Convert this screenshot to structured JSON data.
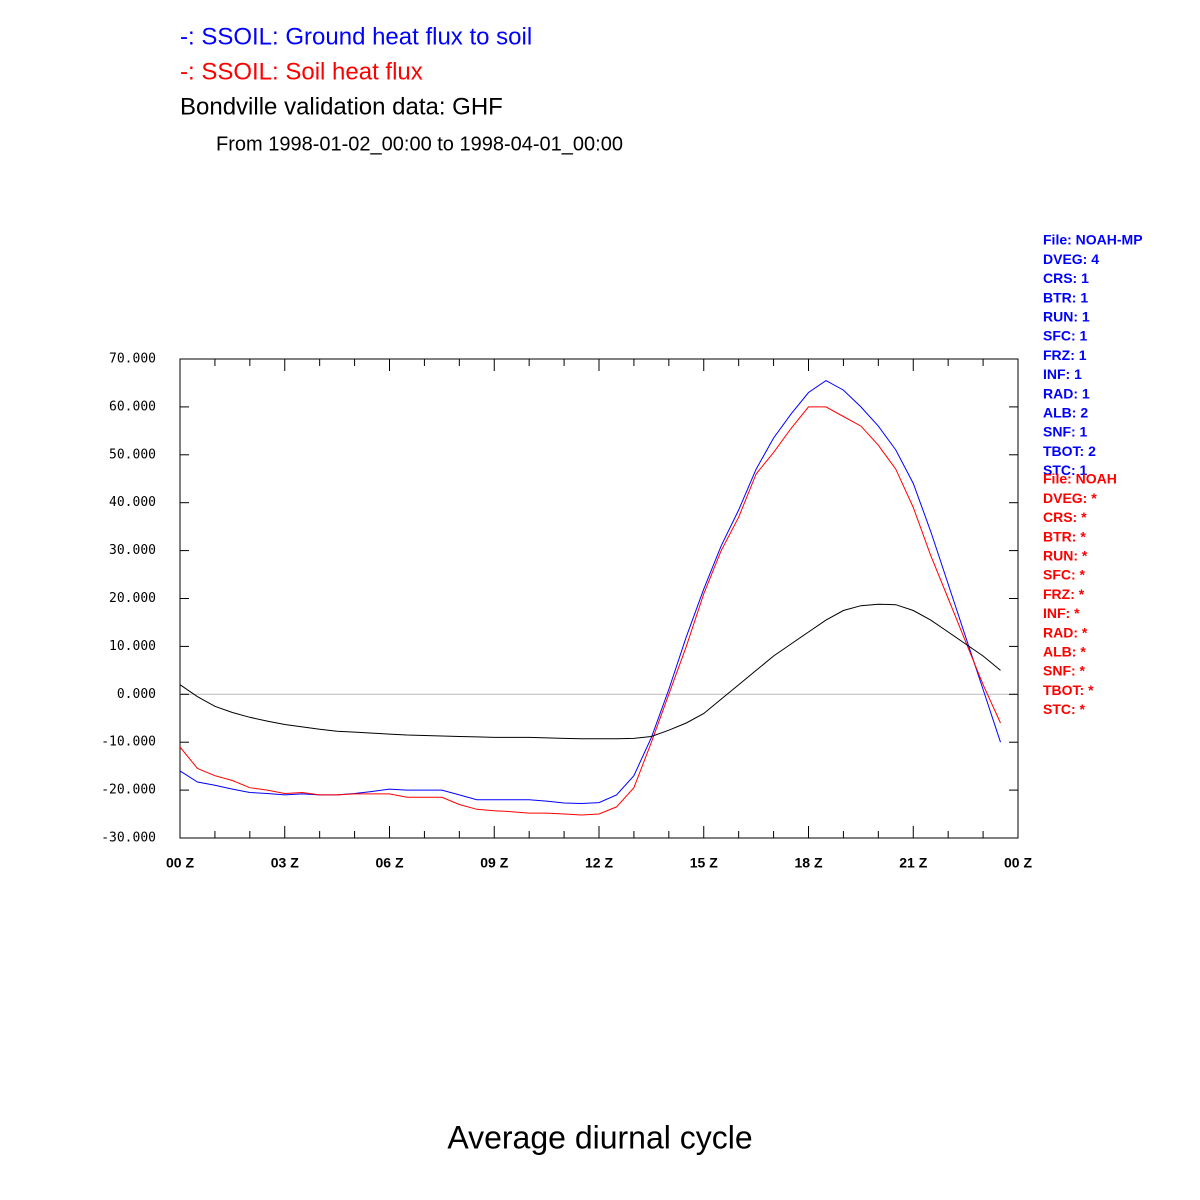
{
  "chart_data": {
    "type": "line",
    "title": "Average diurnal cycle",
    "subtitle": "From 1998-01-02_00:00 to 1998-04-01_00:00",
    "x": [
      0,
      0.5,
      1,
      1.5,
      2,
      2.5,
      3,
      3.5,
      4,
      4.5,
      5,
      5.5,
      6,
      6.5,
      7,
      7.5,
      8,
      8.5,
      9,
      9.5,
      10,
      10.5,
      11,
      11.5,
      12,
      12.5,
      13,
      13.5,
      14,
      14.5,
      15,
      15.5,
      16,
      16.5,
      17,
      17.5,
      18,
      18.5,
      19,
      19.5,
      20,
      20.5,
      21,
      21.5,
      22,
      22.5,
      23,
      23.5
    ],
    "series": [
      {
        "name": "-: SSOIL: Ground heat flux to soil",
        "color": "#0000ff",
        "values": [
          -16,
          -18.3,
          -19,
          -19.8,
          -20.5,
          -20.7,
          -21,
          -20.8,
          -21,
          -21,
          -20.7,
          -20.3,
          -19.8,
          -20,
          -20,
          -20,
          -21,
          -22,
          -22,
          -22,
          -22,
          -22.3,
          -22.7,
          -22.8,
          -22.6,
          -21,
          -17,
          -9,
          1,
          12,
          22,
          31,
          38.5,
          47,
          53.5,
          58.5,
          63,
          65.5,
          63.5,
          60,
          56,
          51,
          44,
          34,
          23,
          12,
          1,
          -10
        ]
      },
      {
        "name": "-: SSOIL: Soil heat flux",
        "color": "#ff0000",
        "values": [
          -11,
          -15.5,
          -17,
          -18,
          -19.5,
          -20,
          -20.7,
          -20.5,
          -21,
          -21,
          -20.8,
          -20.8,
          -20.8,
          -21.5,
          -21.5,
          -21.5,
          -23,
          -24,
          -24.3,
          -24.5,
          -24.8,
          -24.8,
          -25,
          -25.2,
          -25,
          -23.5,
          -19.5,
          -10,
          0,
          10,
          21,
          30,
          37,
          46,
          50.5,
          55.5,
          60,
          60,
          58,
          56,
          52,
          47,
          39,
          29,
          20,
          11,
          2,
          -6
        ]
      },
      {
        "name": "Bondville validation data: GHF",
        "color": "#000000",
        "values": [
          2,
          -0.5,
          -2.5,
          -3.8,
          -4.8,
          -5.6,
          -6.3,
          -6.8,
          -7.3,
          -7.7,
          -7.9,
          -8.1,
          -8.3,
          -8.5,
          -8.6,
          -8.7,
          -8.8,
          -8.9,
          -9,
          -9,
          -9,
          -9.1,
          -9.2,
          -9.3,
          -9.3,
          -9.3,
          -9.2,
          -8.8,
          -7.5,
          -6,
          -4,
          -1,
          2,
          5,
          8,
          10.5,
          13,
          15.5,
          17.5,
          18.5,
          18.8,
          18.7,
          17.5,
          15.5,
          13,
          10.5,
          8,
          5
        ]
      }
    ],
    "xlim": [
      0,
      24
    ],
    "xticks": [
      {
        "value": 0,
        "label": "00 Z"
      },
      {
        "value": 3,
        "label": "03 Z"
      },
      {
        "value": 6,
        "label": "06 Z"
      },
      {
        "value": 9,
        "label": "09 Z"
      },
      {
        "value": 12,
        "label": "12 Z"
      },
      {
        "value": 15,
        "label": "15 Z"
      },
      {
        "value": 18,
        "label": "18 Z"
      },
      {
        "value": 21,
        "label": "21 Z"
      },
      {
        "value": 24,
        "label": "00 Z"
      }
    ],
    "xminorticks": [
      1,
      2,
      4,
      5,
      7,
      8,
      10,
      11,
      13,
      14,
      16,
      17,
      19,
      20,
      22,
      23
    ],
    "ylim": [
      -30,
      70
    ],
    "yticks": [
      {
        "value": -30,
        "label": "-30.000"
      },
      {
        "value": -20,
        "label": "-20.000"
      },
      {
        "value": -10,
        "label": "-10.000"
      },
      {
        "value": 0,
        "label": "0.000"
      },
      {
        "value": 10,
        "label": "10.000"
      },
      {
        "value": 20,
        "label": "20.000"
      },
      {
        "value": 30,
        "label": "30.000"
      },
      {
        "value": 40,
        "label": "40.000"
      },
      {
        "value": 50,
        "label": "50.000"
      },
      {
        "value": 60,
        "label": "60.000"
      },
      {
        "value": 70,
        "label": "70.000"
      }
    ],
    "reference_line": 0,
    "annotations": [
      {
        "color": "#0000ff",
        "lines": [
          "File: NOAH-MP",
          "DVEG: 4",
          "CRS: 1",
          "BTR: 1",
          "RUN: 1",
          "SFC: 1",
          "FRZ: 1",
          "INF: 1",
          "RAD: 1",
          "ALB: 2",
          "SNF: 1",
          "TBOT: 2",
          "STC: 1"
        ]
      },
      {
        "color": "#ff0000",
        "lines": [
          "File: NOAH",
          "DVEG: *",
          "CRS: *",
          "BTR: *",
          "RUN: *",
          "SFC: *",
          "FRZ: *",
          "INF: *",
          "RAD: *",
          "ALB: *",
          "SNF: *",
          "TBOT: *",
          "STC: *"
        ]
      }
    ]
  }
}
